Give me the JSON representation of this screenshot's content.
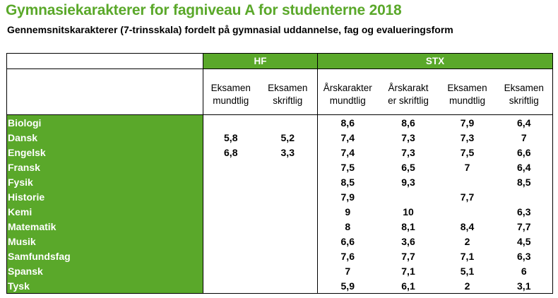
{
  "title": "Gymnasiekarakterer for fagniveau A for studenterne 2018",
  "subtitle": "Gennemsnitskarakterer (7-trinsskala) fordelt på gymnasial uddannelse, fag og evalueringsform",
  "groups": {
    "hf": "HF",
    "stx": "STX"
  },
  "columns": [
    {
      "line1": "Eksamen",
      "line2": "mundtlig"
    },
    {
      "line1": "Eksamen",
      "line2": "skriftlig"
    },
    {
      "line1": "Årskarakter",
      "line2": "mundtlig"
    },
    {
      "line1": "Årskarakt",
      "line2": "er skriftlig"
    },
    {
      "line1": "Eksamen",
      "line2": "mundtlig"
    },
    {
      "line1": "Eksamen",
      "line2": "skriftlig"
    }
  ],
  "rows": [
    {
      "subject": "Biologi",
      "values": [
        "",
        "",
        "8,6",
        "8,6",
        "7,9",
        "6,4"
      ]
    },
    {
      "subject": "Dansk",
      "values": [
        "5,8",
        "5,2",
        "7,4",
        "7,3",
        "7,3",
        "7"
      ]
    },
    {
      "subject": "Engelsk",
      "values": [
        "6,8",
        "3,3",
        "7,4",
        "7,3",
        "7,5",
        "6,6"
      ]
    },
    {
      "subject": "Fransk",
      "values": [
        "",
        "",
        "7,5",
        "6,5",
        "7",
        "6,4"
      ]
    },
    {
      "subject": "Fysik",
      "values": [
        "",
        "",
        "8,5",
        "9,3",
        "",
        "8,5"
      ]
    },
    {
      "subject": "Historie",
      "values": [
        "",
        "",
        "7,9",
        "",
        "7,7",
        ""
      ]
    },
    {
      "subject": "Kemi",
      "values": [
        "",
        "",
        "9",
        "10",
        "",
        "6,3"
      ]
    },
    {
      "subject": "Matematik",
      "values": [
        "",
        "",
        "8",
        "8,1",
        "8,4",
        "7,7"
      ]
    },
    {
      "subject": "Musik",
      "values": [
        "",
        "",
        "6,6",
        "3,6",
        "2",
        "4,5"
      ]
    },
    {
      "subject": "Samfundsfag",
      "values": [
        "",
        "",
        "7,6",
        "7,7",
        "7,1",
        "6,3"
      ]
    },
    {
      "subject": "Spansk",
      "values": [
        "",
        "",
        "7",
        "7,1",
        "5,1",
        "6"
      ]
    },
    {
      "subject": "Tysk",
      "values": [
        "",
        "",
        "5,9",
        "6,1",
        "2",
        "3,1"
      ]
    }
  ],
  "colors": {
    "accent": "#5aa82a"
  }
}
